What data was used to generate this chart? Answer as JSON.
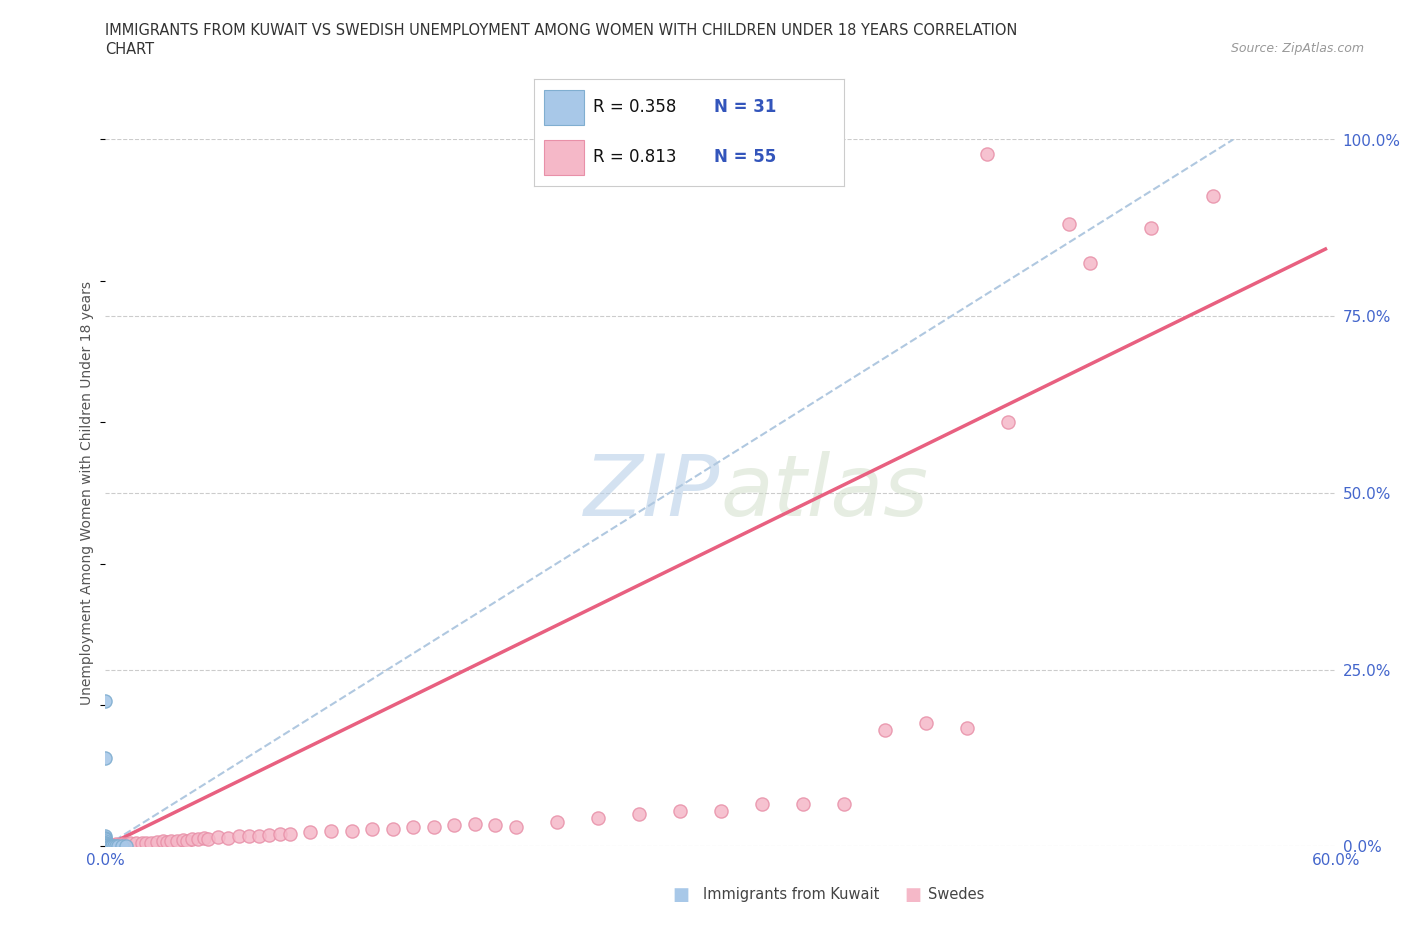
{
  "title_line1": "IMMIGRANTS FROM KUWAIT VS SWEDISH UNEMPLOYMENT AMONG WOMEN WITH CHILDREN UNDER 18 YEARS CORRELATION",
  "title_line2": "CHART",
  "source": "Source: ZipAtlas.com",
  "ylabel": "Unemployment Among Women with Children Under 18 years",
  "xlim": [
    0.0,
    0.6
  ],
  "ylim": [
    0.0,
    1.0
  ],
  "yticks_right": [
    0.0,
    0.25,
    0.5,
    0.75,
    1.0
  ],
  "yticklabels_right": [
    "0.0%",
    "25.0%",
    "50.0%",
    "75.0%",
    "100.0%"
  ],
  "background_color": "#ffffff",
  "kuwait_color": "#a8c8e8",
  "kuwait_edge_color": "#80aed0",
  "swede_color": "#f5b8c8",
  "swede_edge_color": "#e890a8",
  "kuwait_R": 0.358,
  "kuwait_N": 31,
  "swede_R": 0.813,
  "swede_N": 55,
  "watermark": "ZIPatlas",
  "watermark_color": "#c8dcea",
  "kuwait_line_color": "#b0c8e0",
  "swede_line_color": "#e86080",
  "legend_text_color": "#3355bb",
  "axis_tick_color": "#4466cc",
  "title_color": "#333333",
  "source_color": "#999999",
  "ylabel_color": "#555555",
  "grid_color": "#cccccc",
  "kuwait_scatter": [
    [
      0.0,
      0.205
    ],
    [
      0.0,
      0.125
    ],
    [
      0.0,
      0.015
    ],
    [
      0.0,
      0.012
    ],
    [
      0.0,
      0.01
    ],
    [
      0.0,
      0.008
    ],
    [
      0.0,
      0.005
    ],
    [
      0.0,
      0.004
    ],
    [
      0.0,
      0.003
    ],
    [
      0.0,
      0.002
    ],
    [
      0.0,
      0.001
    ],
    [
      0.0,
      0.001
    ],
    [
      0.0,
      0.0
    ],
    [
      0.0,
      0.0
    ],
    [
      0.0,
      0.0
    ],
    [
      0.0,
      0.0
    ],
    [
      0.0,
      0.0
    ],
    [
      0.0,
      0.0
    ],
    [
      0.0,
      0.0
    ],
    [
      0.0,
      0.0
    ],
    [
      0.0,
      0.0
    ],
    [
      0.0,
      0.0
    ],
    [
      0.002,
      0.0
    ],
    [
      0.002,
      0.0
    ],
    [
      0.003,
      0.0
    ],
    [
      0.003,
      0.0
    ],
    [
      0.004,
      0.0
    ],
    [
      0.005,
      0.0
    ],
    [
      0.006,
      0.0
    ],
    [
      0.008,
      0.0
    ],
    [
      0.01,
      0.0
    ]
  ],
  "swede_scatter": [
    [
      0.0,
      0.0
    ],
    [
      0.002,
      0.002
    ],
    [
      0.004,
      0.002
    ],
    [
      0.005,
      0.003
    ],
    [
      0.006,
      0.002
    ],
    [
      0.008,
      0.003
    ],
    [
      0.01,
      0.003
    ],
    [
      0.012,
      0.004
    ],
    [
      0.015,
      0.004
    ],
    [
      0.018,
      0.005
    ],
    [
      0.02,
      0.005
    ],
    [
      0.022,
      0.005
    ],
    [
      0.025,
      0.006
    ],
    [
      0.028,
      0.007
    ],
    [
      0.03,
      0.006
    ],
    [
      0.032,
      0.008
    ],
    [
      0.035,
      0.008
    ],
    [
      0.038,
      0.009
    ],
    [
      0.04,
      0.008
    ],
    [
      0.042,
      0.01
    ],
    [
      0.045,
      0.01
    ],
    [
      0.048,
      0.012
    ],
    [
      0.05,
      0.011
    ],
    [
      0.055,
      0.013
    ],
    [
      0.06,
      0.012
    ],
    [
      0.065,
      0.014
    ],
    [
      0.07,
      0.014
    ],
    [
      0.075,
      0.015
    ],
    [
      0.08,
      0.016
    ],
    [
      0.085,
      0.018
    ],
    [
      0.09,
      0.018
    ],
    [
      0.1,
      0.02
    ],
    [
      0.11,
      0.022
    ],
    [
      0.12,
      0.022
    ],
    [
      0.13,
      0.024
    ],
    [
      0.14,
      0.025
    ],
    [
      0.15,
      0.028
    ],
    [
      0.16,
      0.028
    ],
    [
      0.17,
      0.03
    ],
    [
      0.18,
      0.032
    ],
    [
      0.19,
      0.03
    ],
    [
      0.2,
      0.028
    ],
    [
      0.22,
      0.035
    ],
    [
      0.24,
      0.04
    ],
    [
      0.26,
      0.045
    ],
    [
      0.28,
      0.05
    ],
    [
      0.3,
      0.05
    ],
    [
      0.32,
      0.06
    ],
    [
      0.34,
      0.06
    ],
    [
      0.36,
      0.06
    ],
    [
      0.38,
      0.165
    ],
    [
      0.4,
      0.175
    ],
    [
      0.42,
      0.168
    ],
    [
      0.44,
      0.6
    ],
    [
      0.48,
      0.825
    ]
  ],
  "swede_outliers": [
    [
      0.51,
      0.875
    ],
    [
      0.54,
      0.92
    ],
    [
      0.43,
      0.98
    ],
    [
      0.47,
      0.88
    ]
  ],
  "kuwait_line": [
    [
      0.0,
      0.0
    ],
    [
      0.55,
      1.0
    ]
  ],
  "swede_line": [
    [
      0.0,
      0.0
    ],
    [
      0.595,
      0.845
    ]
  ]
}
